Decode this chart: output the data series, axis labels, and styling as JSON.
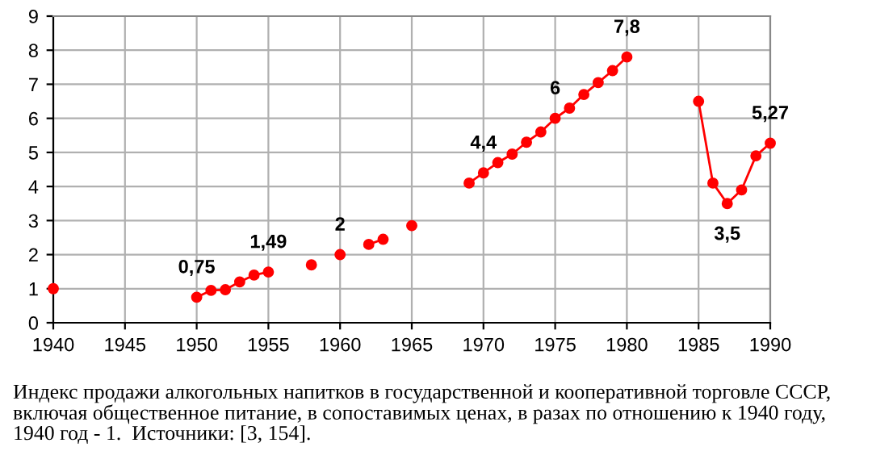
{
  "chart_data": {
    "type": "line",
    "title": "Индекс продажи алкогольных напитков в государственной и кооперативной торговле СССР, включая общественное питание, в сопоставимых ценах, в разах по отношению к 1940 году, 1940 год - 1.  Источники: [3, 154].",
    "x": [
      1940,
      1945,
      1950,
      1951,
      1952,
      1953,
      1954,
      1955,
      1956,
      1958,
      1959,
      1960,
      1961,
      1962,
      1963,
      1964,
      1965,
      1966,
      1969,
      1970,
      1971,
      1972,
      1973,
      1974,
      1975,
      1976,
      1977,
      1978,
      1979,
      1980,
      1981,
      1985,
      1986,
      1987,
      1988,
      1989,
      1990
    ],
    "series": [
      {
        "color": "#ff0000",
        "values": [
          1,
          null,
          0.75,
          0.95,
          0.97,
          1.2,
          1.4,
          1.49,
          null,
          1.7,
          null,
          2,
          null,
          2.3,
          2.45,
          null,
          2.85,
          null,
          4.1,
          4.4,
          4.7,
          4.95,
          5.3,
          5.6,
          6,
          6.3,
          6.7,
          7.05,
          7.4,
          7.8,
          null,
          6.5,
          4.1,
          3.5,
          3.9,
          4.9,
          5.27
        ],
        "value_labels": [
          null,
          null,
          "0,75",
          null,
          null,
          null,
          null,
          "1,49",
          null,
          null,
          null,
          "2",
          null,
          null,
          null,
          null,
          null,
          null,
          null,
          "4,4",
          null,
          null,
          null,
          null,
          "6",
          null,
          null,
          null,
          null,
          "7,8",
          null,
          null,
          null,
          "3,5",
          null,
          null,
          "5,27"
        ]
      }
    ],
    "xlim": [
      1940,
      1990
    ],
    "xticks": [
      1940,
      1945,
      1950,
      1955,
      1960,
      1965,
      1970,
      1975,
      1980,
      1985,
      1990
    ],
    "ylim": [
      0,
      9
    ],
    "yticks": [
      0,
      1,
      2,
      3,
      4,
      5,
      6,
      7,
      8,
      9
    ],
    "grid": true,
    "marker": "circle",
    "line_style": "solid"
  }
}
